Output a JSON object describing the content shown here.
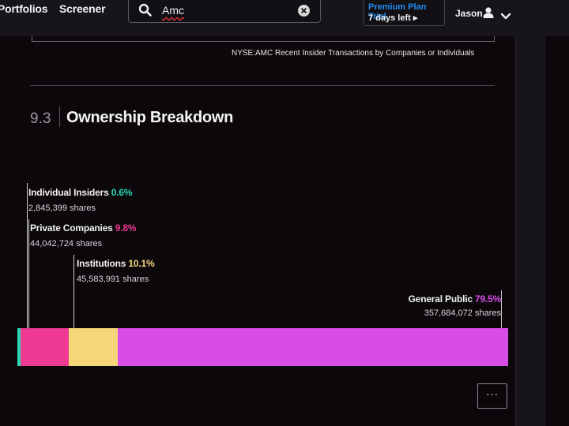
{
  "nav": {
    "portfolios": "Portfolios",
    "screener": "Screener",
    "search_value": "Amc",
    "trial_title": "Premium Plan Trial",
    "trial_sub": "7 days left",
    "trial_arrow": "▸",
    "user_name": "Jason"
  },
  "section": {
    "caption": "NYSE:AMC Recent Insider Transactions by Companies or Individuals",
    "number": "9.3",
    "title": "Ownership Breakdown"
  },
  "ownership": [
    {
      "name": "Individual Insiders",
      "percent": "0.6%",
      "value": 0.6,
      "shares": "2,845,399 shares",
      "color": "#2ad7b4"
    },
    {
      "name": "Private Companies",
      "percent": "9.8%",
      "value": 9.8,
      "shares": "44,042,724 shares",
      "color": "#ee3a93"
    },
    {
      "name": "Institutions",
      "percent": "10.1%",
      "value": 10.1,
      "shares": "45,583,991 shares",
      "color": "#f5d77a"
    },
    {
      "name": "General Public",
      "percent": "79.5%",
      "value": 79.5,
      "shares": "357,684,072 shares",
      "color": "#d84de6"
    }
  ],
  "more_label": "···"
}
